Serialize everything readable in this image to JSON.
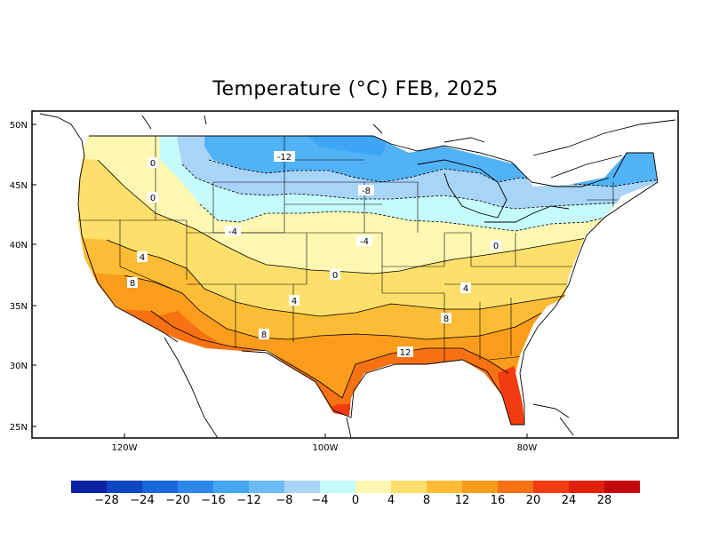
{
  "title": "Temperature (°C) FEB, 2025",
  "map": {
    "lat_ticks": [
      "50N",
      "45N",
      "40N",
      "35N",
      "30N",
      "25N"
    ],
    "lon_ticks": [
      "120W",
      "100W",
      "80W"
    ],
    "contour_labels": [
      "0",
      "0",
      "-12",
      "-8",
      "-4",
      "-4",
      "4",
      "8",
      "0",
      "4",
      "0",
      "4",
      "8",
      "8",
      "12"
    ],
    "shading_colors": {
      "minus12_to_minus8": "#51b2f6",
      "minus8_to_minus4": "#a8d4f8",
      "minus4_to_0": "#c5fbfb",
      "0_to_4": "#fdf7b2",
      "4_to_8": "#fde06b",
      "8_to_12": "#fcbc36",
      "12_to_16": "#fb9d1c",
      "16_to_20": "#f77212",
      "20_to_24": "#f33b11"
    }
  },
  "colorbar": {
    "labels": [
      "−28",
      "−24",
      "−20",
      "−16",
      "−12",
      "−8",
      "−4",
      "0",
      "4",
      "8",
      "12",
      "16",
      "20",
      "24",
      "28"
    ],
    "colors": [
      "#0b22a0",
      "#0c46c0",
      "#1a67dc",
      "#2d87ea",
      "#45a7f4",
      "#6bbcf6",
      "#a9d4f8",
      "#c4fbfb",
      "#fdf6b0",
      "#fde06b",
      "#fcbc36",
      "#fb9d1c",
      "#f77212",
      "#f43c10",
      "#e2200e",
      "#c4050b"
    ]
  }
}
